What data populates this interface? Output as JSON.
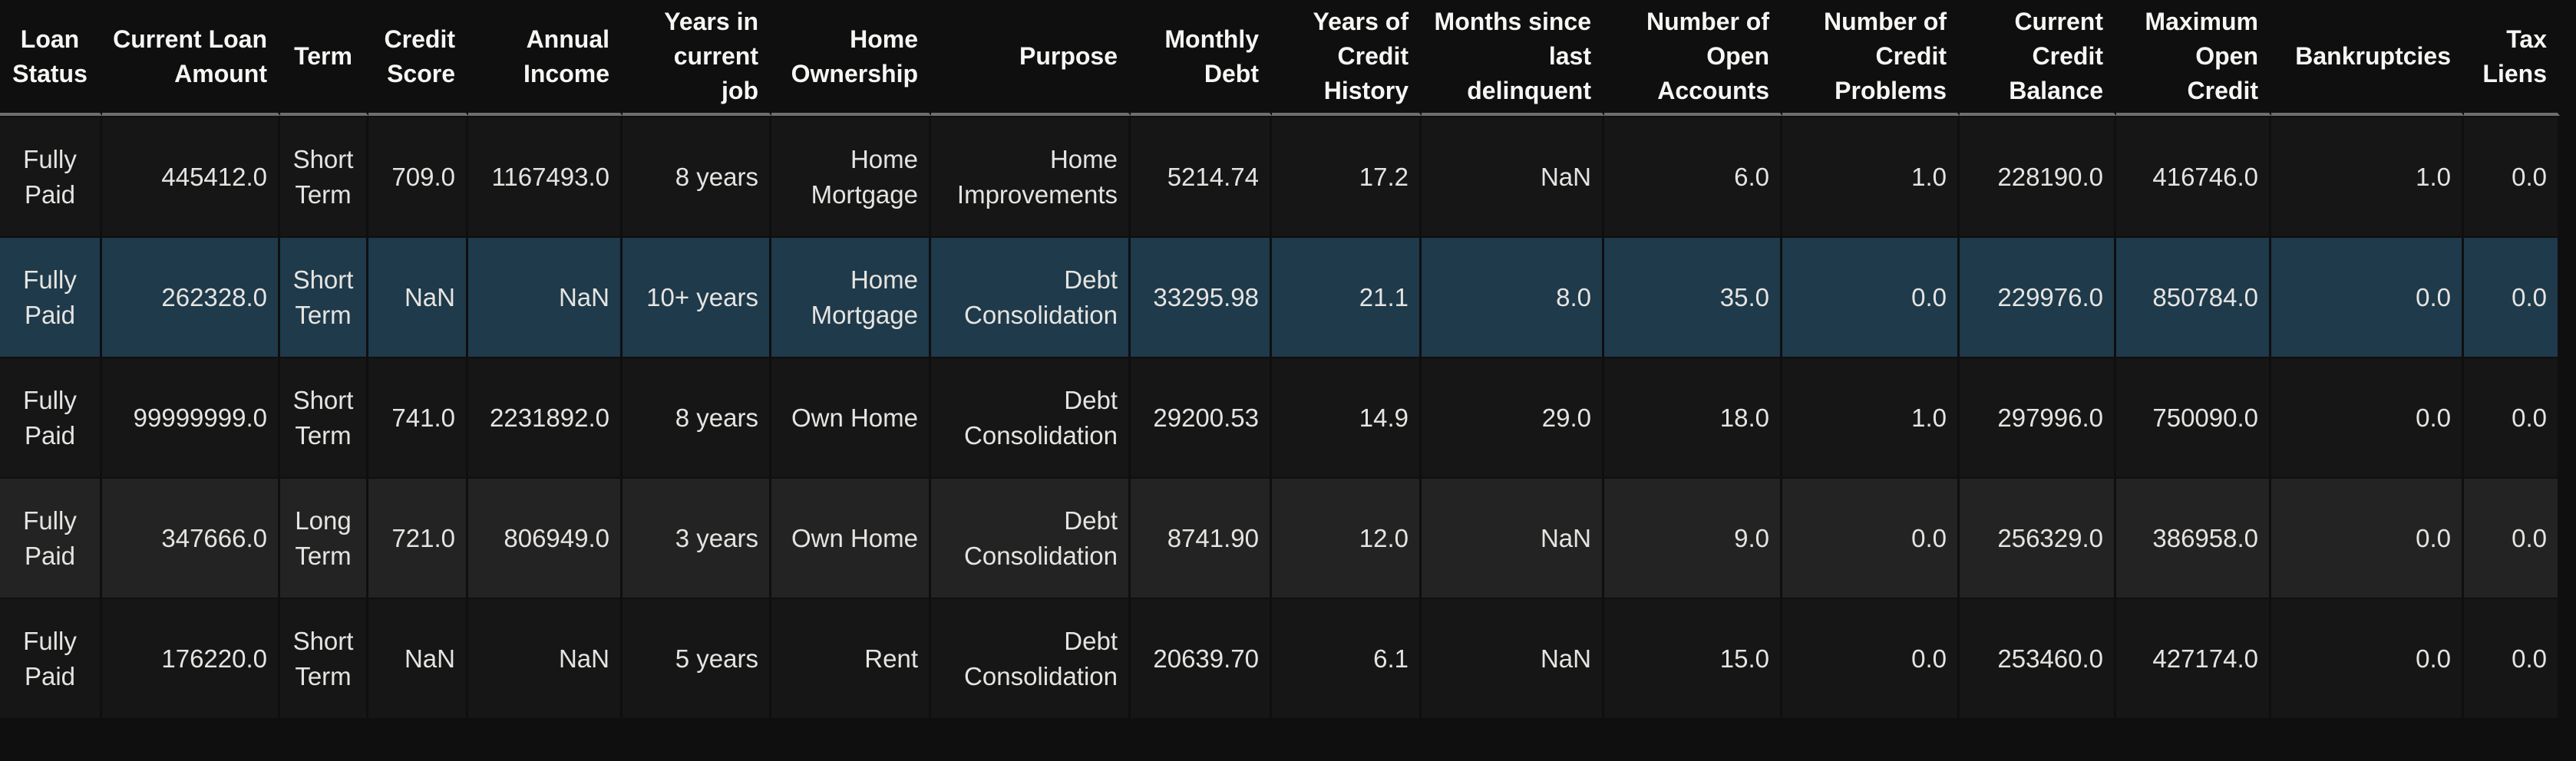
{
  "table": {
    "columns": [
      "Loan Status",
      "Current Loan Amount",
      "Term",
      "Credit Score",
      "Annual Income",
      "Years in current job",
      "Home Ownership",
      "Purpose",
      "Monthly Debt",
      "Years of Credit History",
      "Months since last delinquent",
      "Number of Open Accounts",
      "Number of Credit Problems",
      "Current Credit Balance",
      "Maximum Open Credit",
      "Bankruptcies",
      "Tax Liens"
    ],
    "rows": [
      [
        "Fully Paid",
        "445412.0",
        "Short Term",
        "709.0",
        "1167493.0",
        "8 years",
        "Home Mortgage",
        "Home Improvements",
        "5214.74",
        "17.2",
        "NaN",
        "6.0",
        "1.0",
        "228190.0",
        "416746.0",
        "1.0",
        "0.0"
      ],
      [
        "Fully Paid",
        "262328.0",
        "Short Term",
        "NaN",
        "NaN",
        "10+ years",
        "Home Mortgage",
        "Debt Consolidation",
        "33295.98",
        "21.1",
        "8.0",
        "35.0",
        "0.0",
        "229976.0",
        "850784.0",
        "0.0",
        "0.0"
      ],
      [
        "Fully Paid",
        "99999999.0",
        "Short Term",
        "741.0",
        "2231892.0",
        "8 years",
        "Own Home",
        "Debt Consolidation",
        "29200.53",
        "14.9",
        "29.0",
        "18.0",
        "1.0",
        "297996.0",
        "750090.0",
        "0.0",
        "0.0"
      ],
      [
        "Fully Paid",
        "347666.0",
        "Long Term",
        "721.0",
        "806949.0",
        "3 years",
        "Own Home",
        "Debt Consolidation",
        "8741.90",
        "12.0",
        "NaN",
        "9.0",
        "0.0",
        "256329.0",
        "386958.0",
        "0.0",
        "0.0"
      ],
      [
        "Fully Paid",
        "176220.0",
        "Short Term",
        "NaN",
        "NaN",
        "5 years",
        "Rent",
        "Debt Consolidation",
        "20639.70",
        "6.1",
        "NaN",
        "15.0",
        "0.0",
        "253460.0",
        "427174.0",
        "0.0",
        "0.0"
      ]
    ],
    "selected_row_index": 1
  },
  "colors": {
    "page_background": "#0f0f0f",
    "row_odd_background": "#161616",
    "row_even_background": "#232323",
    "selected_row_background": "#1e3a4b",
    "header_rule": "#6e6e6e",
    "cell_text": "#e6e4e1",
    "header_text": "#f7f6f4"
  }
}
